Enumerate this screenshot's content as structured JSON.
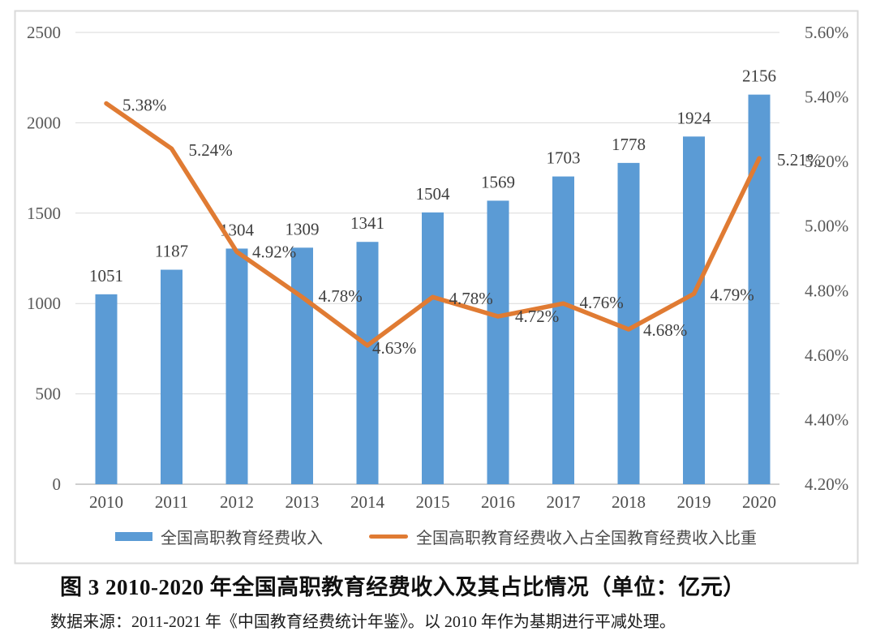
{
  "chart_data": {
    "type": "bar",
    "subtype": "combo-bar-line",
    "categories": [
      "2010",
      "2011",
      "2012",
      "2013",
      "2014",
      "2015",
      "2016",
      "2017",
      "2018",
      "2019",
      "2020"
    ],
    "series": [
      {
        "name": "全国高职教育经费收入",
        "type": "bar",
        "axis": "left",
        "color": "#5B9BD5",
        "values": [
          1051,
          1187,
          1304,
          1309,
          1341,
          1504,
          1569,
          1703,
          1778,
          1924,
          2156
        ]
      },
      {
        "name": "全国高职教育经费收入占全国教育经费收入比重",
        "type": "line",
        "axis": "right",
        "color": "#E07B33",
        "values": [
          5.38,
          5.24,
          4.92,
          4.78,
          4.63,
          4.78,
          4.72,
          4.76,
          4.68,
          4.79,
          5.21
        ],
        "point_labels": [
          "5.38%",
          "5.24%",
          "4.92%",
          "4.78%",
          "4.63%",
          "4.78%",
          "4.72%",
          "4.76%",
          "4.68%",
          "4.79%",
          "5.21%"
        ]
      }
    ],
    "left_axis": {
      "min": 0,
      "max": 2500,
      "ticks": [
        "0",
        "500",
        "1000",
        "1500",
        "2000",
        "2500"
      ]
    },
    "right_axis": {
      "min": 4.2,
      "max": 5.6,
      "ticks": [
        "4.20%",
        "4.40%",
        "4.60%",
        "4.80%",
        "5.00%",
        "5.20%",
        "5.40%",
        "5.60%"
      ]
    },
    "grid": true,
    "legend_position": "bottom",
    "colors": {
      "gridline": "#D9D9D9",
      "axis_line": "#BFBFBF",
      "frame_border": "#D9D9D9",
      "tick_text": "#595959",
      "data_label_text": "#3f3f3f"
    }
  },
  "caption": {
    "title": "图 3  2010-2020 年全国高职教育经费收入及其占比情况（单位：亿元）",
    "source": "数据来源：2011-2021 年《中国教育经费统计年鉴》。以 2010 年作为基期进行平减处理。"
  }
}
